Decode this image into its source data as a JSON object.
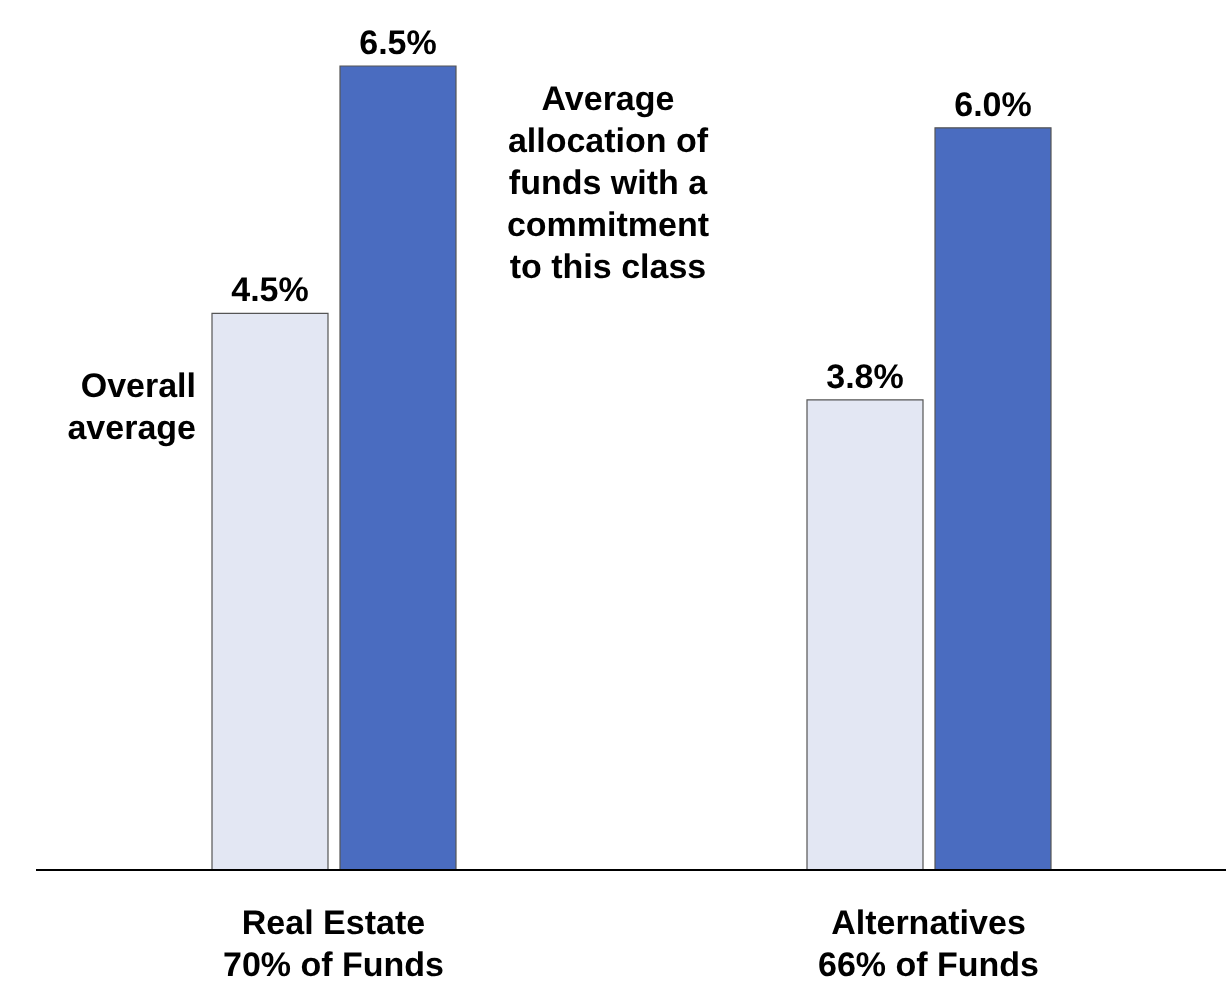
{
  "chart_data": {
    "type": "bar",
    "categories": [
      "Real Estate 70% of Funds",
      "Alternatives 66% of Funds"
    ],
    "series": [
      {
        "name": "Overall average",
        "color": "#e3e7f3",
        "values": [
          4.5,
          3.8
        ],
        "value_labels": [
          "4.5%",
          "3.8%"
        ]
      },
      {
        "name": "Average allocation of funds with a commitment to this class",
        "color": "#4a6cc0",
        "values": [
          6.5,
          6.0
        ],
        "value_labels": [
          "6.5%",
          "6.0%"
        ]
      }
    ],
    "legend": false,
    "grid": false
  }
}
